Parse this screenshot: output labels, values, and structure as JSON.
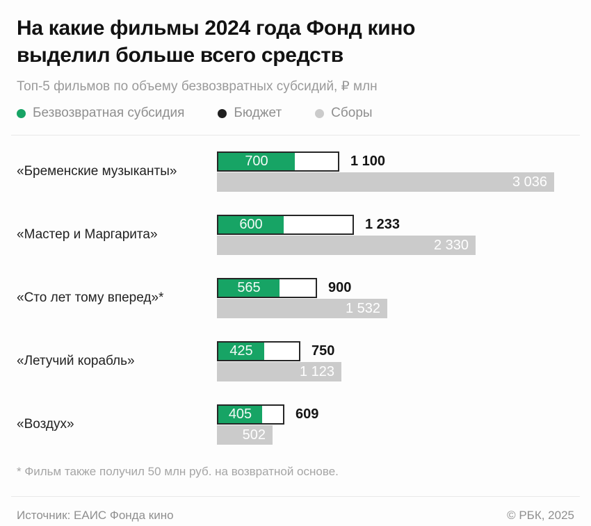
{
  "page": {
    "title_line1": "На какие фильмы 2024 года Фонд кино",
    "title_line2": "выделил больше всего средств",
    "subtitle": "Топ-5 фильмов по объему безвозвратных субсидий, ₽ млн",
    "footnote": "* Фильм также получил 50 млн руб. на возвратной основе.",
    "footer": {
      "source": "Источник: ЕАИС Фонда кино",
      "copyright": "© РБК, 2025"
    }
  },
  "legend": {
    "items": [
      {
        "name": "subsidy",
        "label": "Безвозвратная субсидия",
        "color": "#17A465"
      },
      {
        "name": "budget",
        "label": "Бюджет",
        "color": "#1F1F1F"
      },
      {
        "name": "box-office",
        "label": "Сборы",
        "color": "#CBCBCB"
      }
    ]
  },
  "colors": {
    "subsidy_green": "#17A465",
    "budget_border": "#262626",
    "box_office_gray": "#CBCBCB",
    "title_text": "#121212",
    "muted_text": "#9A9A9A",
    "divider": "#E8E8E8"
  },
  "chart_data": {
    "type": "bar",
    "orientation": "horizontal",
    "unit": "₽ млн",
    "title": "На какие фильмы 2024 года Фонд кино выделил больше всего средств",
    "subtitle": "Топ-5 фильмов по объему безвозвратных субсидий, ₽ млн",
    "legend_entries": [
      "Безвозвратная субсидия",
      "Бюджет",
      "Сборы"
    ],
    "scale_max": 3036,
    "rows": [
      {
        "film": "«Бременские музыканты»",
        "subsidy": 700,
        "budget": 1100,
        "box_office": 3036,
        "subsidy_label": "700",
        "budget_label": "1 100",
        "box_office_label": "3 036"
      },
      {
        "film": "«Мастер и Маргарита»",
        "subsidy": 600,
        "budget": 1233,
        "box_office": 2330,
        "subsidy_label": "600",
        "budget_label": "1 233",
        "box_office_label": "2 330"
      },
      {
        "film": "«Сто лет тому вперед»*",
        "subsidy": 565,
        "budget": 900,
        "box_office": 1532,
        "subsidy_label": "565",
        "budget_label": "900",
        "box_office_label": "1 532"
      },
      {
        "film": "«Летучий корабль»",
        "subsidy": 425,
        "budget": 750,
        "box_office": 1123,
        "subsidy_label": "425",
        "budget_label": "750",
        "box_office_label": "1 123"
      },
      {
        "film": "«Воздух»",
        "subsidy": 405,
        "budget": 609,
        "box_office": 502,
        "subsidy_label": "405",
        "budget_label": "609",
        "box_office_label": "502"
      }
    ]
  }
}
